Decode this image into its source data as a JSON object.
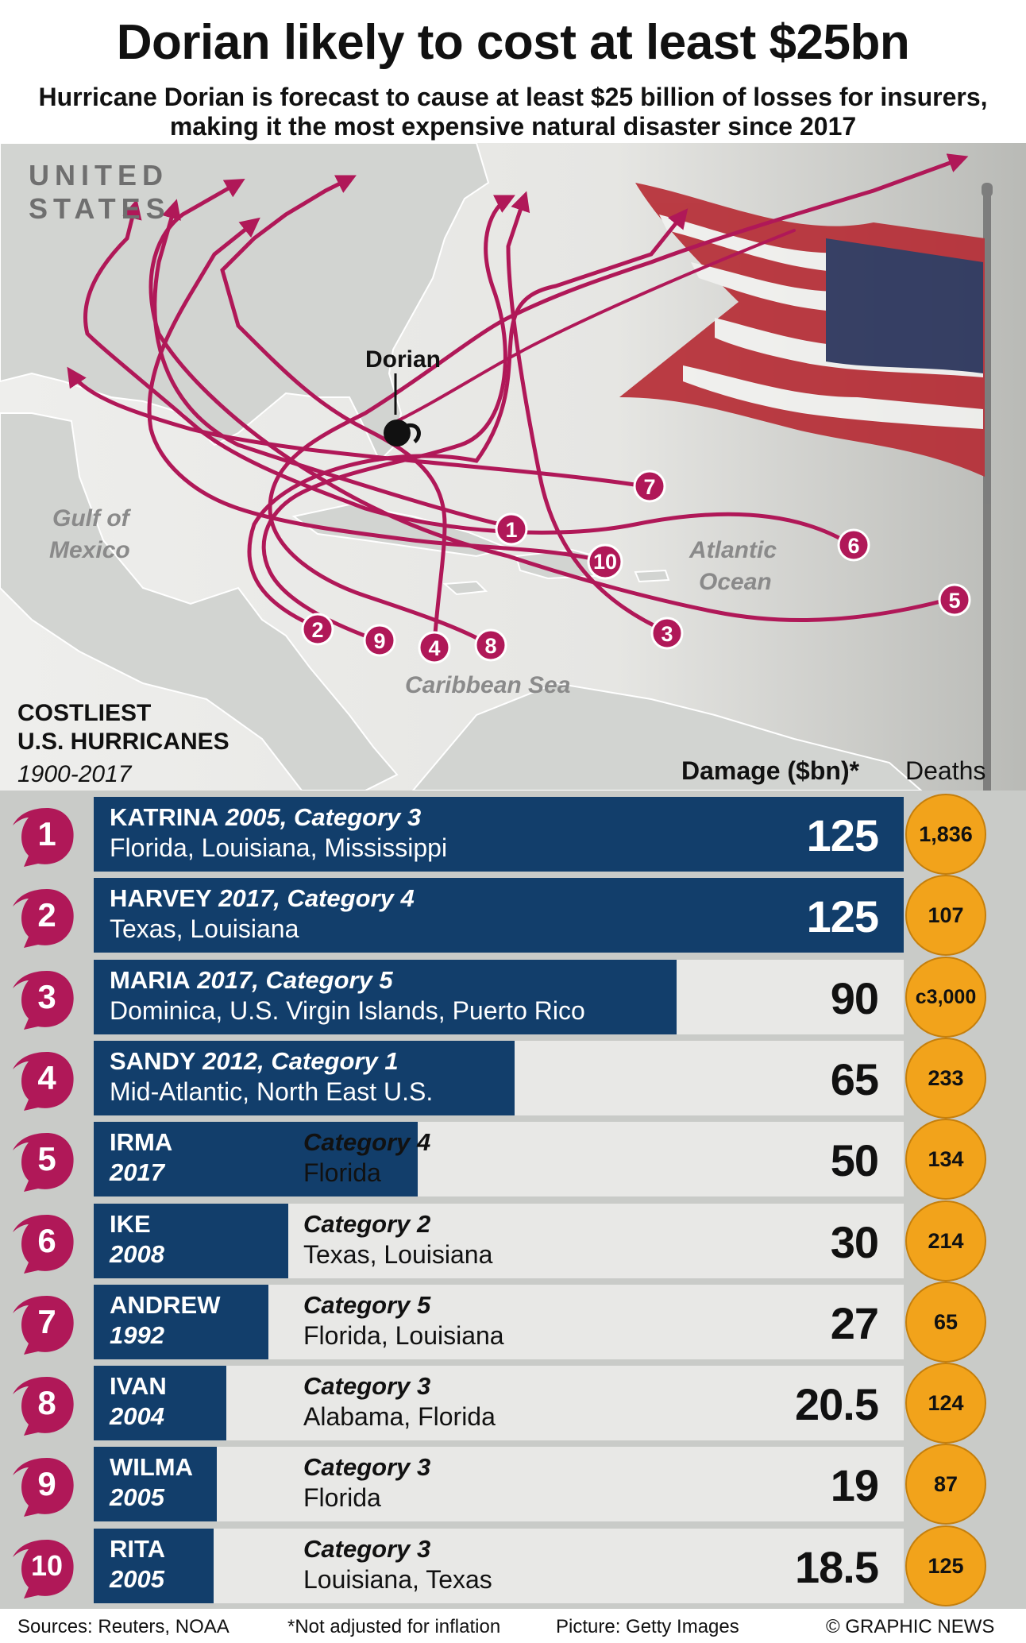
{
  "headline": "Dorian likely to cost at least $25bn",
  "subhead": "Hurricane Dorian is forecast to cause at least $25 billion of losses for insurers, making it the most expensive natural disaster since 2017",
  "map": {
    "country_label_1": "UNITED",
    "country_label_2": "STATES",
    "gulf_1": "Gulf of",
    "gulf_2": "Mexico",
    "atlantic_1": "Atlantic",
    "atlantic_2": "Ocean",
    "caribbean": "Caribbean Sea",
    "storm_label": "Dorian",
    "track_numbers": [
      "1",
      "2",
      "3",
      "4",
      "5",
      "6",
      "7",
      "8",
      "9",
      "10"
    ],
    "colors": {
      "track": "#b01858",
      "land": "#d2d4d1",
      "sea": "#eeeeec"
    }
  },
  "section": {
    "title_1": "COSTLIEST",
    "title_2": "U.S. HURRICANES",
    "years": "1900-2017",
    "damage_header": "Damage ($bn)*",
    "deaths_header": "Deaths"
  },
  "chart_data": {
    "type": "bar",
    "title": "COSTLIEST U.S. HURRICANES 1900-2017",
    "xlabel": "Damage ($bn)*",
    "xlim": [
      0,
      125
    ],
    "categories": [
      "KATRINA",
      "HARVEY",
      "MARIA",
      "SANDY",
      "IRMA",
      "IKE",
      "ANDREW",
      "IVAN",
      "WILMA",
      "RITA"
    ],
    "rows": [
      {
        "rank": "1",
        "name": "KATRINA",
        "year": "2005",
        "category": "Category 3",
        "regions": "Florida, Louisiana, Mississippi",
        "damage": 125,
        "damage_label": "125",
        "deaths": "1,836"
      },
      {
        "rank": "2",
        "name": "HARVEY",
        "year": "2017",
        "category": "Category 4",
        "regions": "Texas, Louisiana",
        "damage": 125,
        "damage_label": "125",
        "deaths": "107"
      },
      {
        "rank": "3",
        "name": "MARIA",
        "year": "2017",
        "category": "Category 5",
        "regions": "Dominica, U.S. Virgin Islands, Puerto Rico",
        "damage": 90,
        "damage_label": "90",
        "deaths": "c3,000"
      },
      {
        "rank": "4",
        "name": "SANDY",
        "year": "2012",
        "category": "Category 1",
        "regions": "Mid-Atlantic, North East U.S.",
        "damage": 65,
        "damage_label": "65",
        "deaths": "233"
      },
      {
        "rank": "5",
        "name": "IRMA",
        "year": "2017",
        "category": "Category 4",
        "regions": "Florida",
        "damage": 50,
        "damage_label": "50",
        "deaths": "134"
      },
      {
        "rank": "6",
        "name": "IKE",
        "year": "2008",
        "category": "Category 2",
        "regions": "Texas, Louisiana",
        "damage": 30,
        "damage_label": "30",
        "deaths": "214"
      },
      {
        "rank": "7",
        "name": "ANDREW",
        "year": "1992",
        "category": "Category 5",
        "regions": "Florida, Louisiana",
        "damage": 27,
        "damage_label": "27",
        "deaths": "65"
      },
      {
        "rank": "8",
        "name": "IVAN",
        "year": "2004",
        "category": "Category 3",
        "regions": "Alabama, Florida",
        "damage": 20.5,
        "damage_label": "20.5",
        "deaths": "124"
      },
      {
        "rank": "9",
        "name": "WILMA",
        "year": "2005",
        "category": "Category 3",
        "regions": "Florida",
        "damage": 19,
        "damage_label": "19",
        "deaths": "87"
      },
      {
        "rank": "10",
        "name": "RITA",
        "year": "2005",
        "category": "Category 3",
        "regions": "Louisiana, Texas",
        "damage": 18.5,
        "damage_label": "18.5",
        "deaths": "125"
      }
    ],
    "colors": {
      "bar": "#123e6b",
      "track": "#e8e8e6",
      "badge": "#b01858",
      "deaths": "#f2a31b"
    }
  },
  "footer": {
    "sources": "Sources: Reuters, NOAA",
    "note": "*Not adjusted for inflation",
    "picture": "Picture: Getty Images",
    "credit": "© GRAPHIC NEWS"
  }
}
